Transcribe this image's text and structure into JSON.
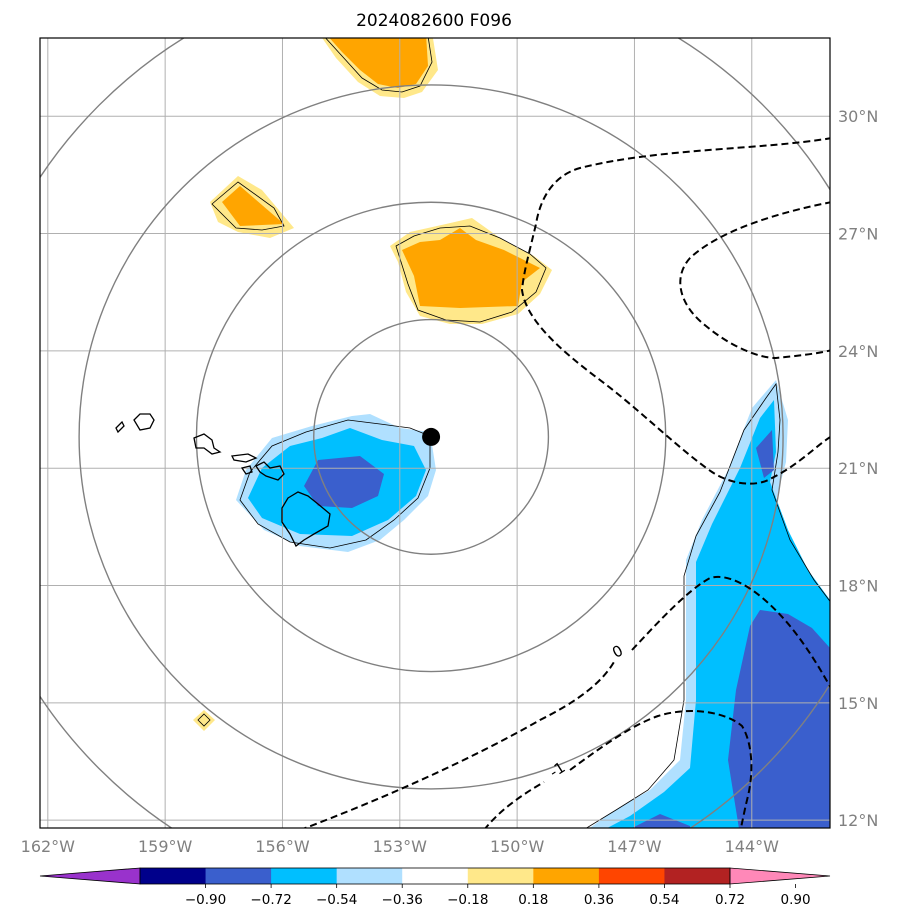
{
  "title": "2024082600 F096",
  "map": {
    "lon_range": [
      -162.2,
      -142.0
    ],
    "lat_range": [
      11.8,
      32.0
    ],
    "lon_ticks": [
      {
        "value": -162,
        "label": "162°W"
      },
      {
        "value": -159,
        "label": "159°W"
      },
      {
        "value": -156,
        "label": "156°W"
      },
      {
        "value": -153,
        "label": "153°W"
      },
      {
        "value": -150,
        "label": "150°W"
      },
      {
        "value": -147,
        "label": "147°W"
      },
      {
        "value": -144,
        "label": "144°W"
      }
    ],
    "lat_ticks": [
      {
        "value": 12,
        "label": "12°N"
      },
      {
        "value": 15,
        "label": "15°N"
      },
      {
        "value": 18,
        "label": "18°N"
      },
      {
        "value": 21,
        "label": "21°N"
      },
      {
        "value": 24,
        "label": "24°N"
      },
      {
        "value": 27,
        "label": "27°N"
      },
      {
        "value": 30,
        "label": "30°N"
      }
    ],
    "center": {
      "lon": -152.2,
      "lat": 21.8
    },
    "range_rings_deg": [
      3,
      6,
      9,
      12
    ],
    "grid_color": "#b0b0b0",
    "ring_color": "#808080"
  },
  "colorbar": {
    "labels": [
      "−0.90",
      "−0.72",
      "−0.54",
      "−0.36",
      "−0.18",
      "0.18",
      "0.36",
      "0.54",
      "0.72",
      "0.90"
    ],
    "colors": [
      "#9932cc",
      "#00008b",
      "#3a5fcd",
      "#00bfff",
      "#b0e0ff",
      "#ffffff",
      "#ffe88a",
      "#ffa500",
      "#ff4500",
      "#b22222",
      "#ff88b8"
    ],
    "extend": "both"
  },
  "contour_labels": [
    {
      "text": "0",
      "lon": -147.4,
      "lat": 16.3
    },
    {
      "text": "-1",
      "lon": -149.0,
      "lat": 13.3
    }
  ],
  "shading_colors": {
    "pos_light": "#ffe88a",
    "pos_strong": "#ffa500",
    "neg_light": "#b0e0ff",
    "neg_mid": "#00bfff",
    "neg_strong": "#3a5fcd"
  }
}
